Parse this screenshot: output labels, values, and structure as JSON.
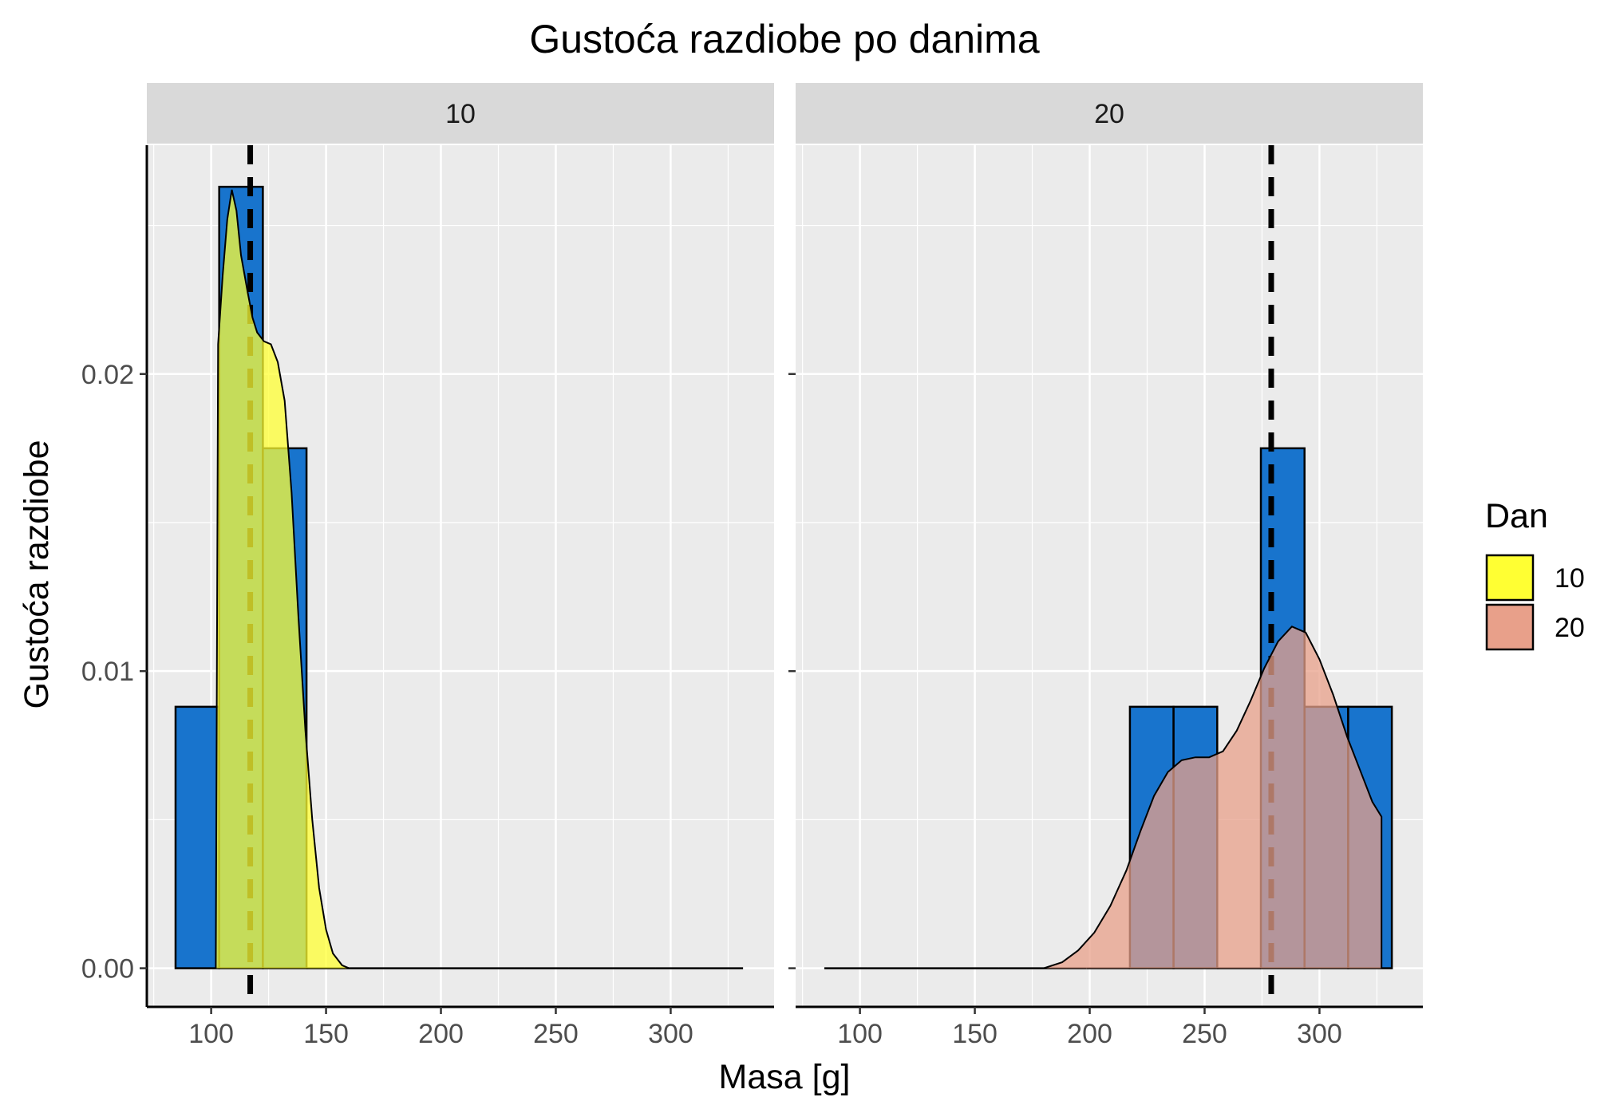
{
  "chart_data": {
    "type": "histogram with density overlay, faceted",
    "title": "Gustoća razdiobe po danima",
    "xlabel": "Masa [g]",
    "ylabel": "Gustoća razdiobe",
    "xlim": [
      72,
      345
    ],
    "ylim": [
      -0.0013,
      0.0277
    ],
    "x_ticks": [
      100,
      150,
      200,
      250,
      300
    ],
    "x_tick_labels": [
      "100",
      "150",
      "200",
      "250",
      "300"
    ],
    "y_ticks": [
      0,
      0.01,
      0.02
    ],
    "y_tick_labels": [
      "0.00",
      "0.01",
      "0.02"
    ],
    "grid": true,
    "legend": {
      "title": "Dan",
      "position": "right",
      "entries": [
        {
          "label": "10",
          "color": "#ffff33"
        },
        {
          "label": "20",
          "color": "#e8a08a"
        }
      ]
    },
    "histogram_bin_edges": [
      84.5,
      103.5,
      122.5,
      141.5,
      160.5,
      179.5,
      198.5,
      217.5,
      236.5,
      255.5,
      274.5,
      293.5,
      312.5,
      331.5
    ],
    "histogram_color": "#1874cd",
    "facets": [
      {
        "strip_label": "10",
        "fill_color": "#ffff33",
        "mean_x": 117,
        "histogram_density": [
          0.0088,
          0.0263,
          0.0175,
          0,
          0,
          0,
          0,
          0,
          0,
          0,
          0,
          0,
          0
        ],
        "density_curve": [
          [
            102,
            0
          ],
          [
            103,
            0.021
          ],
          [
            105,
            0.0233
          ],
          [
            107,
            0.0252
          ],
          [
            109,
            0.0262
          ],
          [
            111,
            0.0255
          ],
          [
            113,
            0.024
          ],
          [
            116,
            0.0227
          ],
          [
            118,
            0.0219
          ],
          [
            120,
            0.0214
          ],
          [
            123,
            0.0211
          ],
          [
            126,
            0.021
          ],
          [
            129,
            0.0204
          ],
          [
            132,
            0.0191
          ],
          [
            135,
            0.016
          ],
          [
            138,
            0.0118
          ],
          [
            141,
            0.008
          ],
          [
            144,
            0.005
          ],
          [
            147,
            0.0027
          ],
          [
            150,
            0.0013
          ],
          [
            153,
            0.0005
          ],
          [
            157,
            0.0001
          ],
          [
            160,
            0
          ],
          [
            330,
            0
          ]
        ]
      },
      {
        "strip_label": "20",
        "fill_color": "#e8a08a",
        "mean_x": 279,
        "histogram_density": [
          0,
          0,
          0,
          0,
          0,
          0,
          0,
          0.0088,
          0.0088,
          0,
          0.0175,
          0.0088,
          0.0088
        ],
        "density_curve": [
          [
            85,
            0
          ],
          [
            180,
            0
          ],
          [
            188,
            0.0002
          ],
          [
            195,
            0.0006
          ],
          [
            202,
            0.0012
          ],
          [
            209,
            0.0021
          ],
          [
            216,
            0.0033
          ],
          [
            222,
            0.0046
          ],
          [
            228,
            0.0058
          ],
          [
            234,
            0.0066
          ],
          [
            240,
            0.007
          ],
          [
            246,
            0.0071
          ],
          [
            252,
            0.0071
          ],
          [
            258,
            0.0073
          ],
          [
            264,
            0.008
          ],
          [
            270,
            0.009
          ],
          [
            276,
            0.0101
          ],
          [
            282,
            0.011
          ],
          [
            288,
            0.0115
          ],
          [
            294,
            0.0113
          ],
          [
            300,
            0.0104
          ],
          [
            306,
            0.0092
          ],
          [
            312,
            0.0078
          ],
          [
            318,
            0.0066
          ],
          [
            323,
            0.0056
          ],
          [
            327,
            0.0051
          ],
          [
            327,
            0
          ]
        ]
      }
    ]
  }
}
